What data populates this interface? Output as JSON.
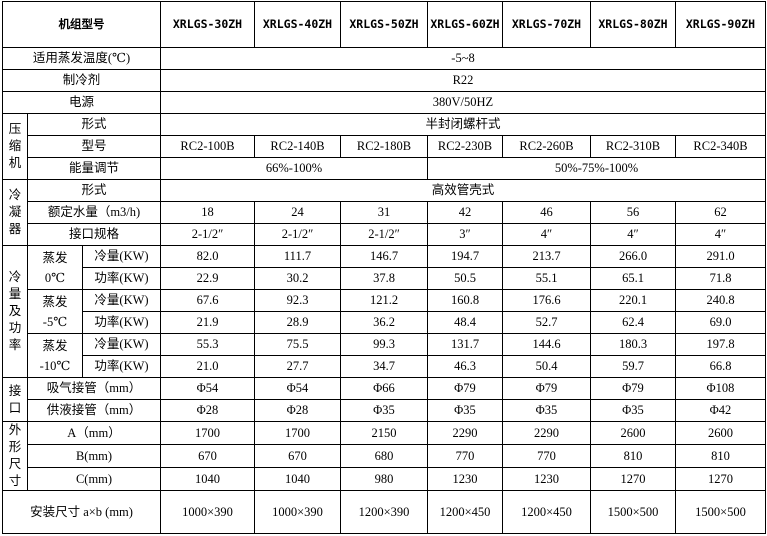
{
  "table": {
    "header": {
      "label": "机组型号",
      "models": [
        "XRLGS-30ZH",
        "XRLGS-40ZH",
        "XRLGS-50ZH",
        "XRLGS-60ZH",
        "XRLGS-70ZH",
        "XRLGS-80ZH",
        "XRLGS-90ZH"
      ]
    },
    "evap_temp": {
      "label": "适用蒸发温度(℃)",
      "value": "-5~8"
    },
    "refrigerant": {
      "label": "制冷剂",
      "value": "R22"
    },
    "power_supply": {
      "label": "电源",
      "value": "380V/50HZ"
    },
    "compressor": {
      "group": "压缩机",
      "type_label": "形式",
      "type": "半封闭螺杆式",
      "model_label": "型号",
      "models": [
        "RC2-100B",
        "RC2-140B",
        "RC2-180B",
        "RC2-230B",
        "RC2-260B",
        "RC2-310B",
        "RC2-340B"
      ],
      "capacity_label": "能量调节",
      "capacity": [
        "66%-100%",
        "50%-75%-100%"
      ]
    },
    "condenser": {
      "group": "冷凝器",
      "type_label": "形式",
      "type": "高效管壳式",
      "flow_label": "额定水量（m3/h)",
      "flow": [
        "18",
        "24",
        "31",
        "42",
        "46",
        "56",
        "62"
      ],
      "conn_label": "接口规格",
      "conn": [
        "2-1/2″",
        "2-1/2″",
        "2-1/2″",
        "3″",
        "4″",
        "4″",
        "4″"
      ]
    },
    "cooling": {
      "group": "冷量及功率",
      "conditions": [
        {
          "label_1": "蒸发",
          "label_2": "0℃",
          "capacity_label": "冷量(KW)",
          "capacity": [
            "82.0",
            "111.7",
            "146.7",
            "194.7",
            "213.7",
            "266.0",
            "291.0"
          ],
          "power_label": "功率(KW)",
          "power": [
            "22.9",
            "30.2",
            "37.8",
            "50.5",
            "55.1",
            "65.1",
            "71.8"
          ]
        },
        {
          "label_1": "蒸发",
          "label_2": "-5℃",
          "capacity_label": "冷量(KW)",
          "capacity": [
            "67.6",
            "92.3",
            "121.2",
            "160.8",
            "176.6",
            "220.1",
            "240.8"
          ],
          "power_label": "功率(KW)",
          "power": [
            "21.9",
            "28.9",
            "36.2",
            "48.4",
            "52.7",
            "62.4",
            "69.0"
          ]
        },
        {
          "label_1": "蒸发",
          "label_2": "-10℃",
          "capacity_label": "冷量(KW)",
          "capacity": [
            "55.3",
            "75.5",
            "99.3",
            "131.7",
            "144.6",
            "180.3",
            "197.8"
          ],
          "power_label": "功率(KW)",
          "power": [
            "21.0",
            "27.7",
            "34.7",
            "46.3",
            "50.4",
            "59.7",
            "66.8"
          ]
        }
      ]
    },
    "pipes": {
      "group": "接口",
      "suction_label": "吸气接管（mm）",
      "suction": [
        "Φ54",
        "Φ54",
        "Φ66",
        "Φ79",
        "Φ79",
        "Φ79",
        "Φ108"
      ],
      "liquid_label": "供液接管（mm）",
      "liquid": [
        "Φ28",
        "Φ28",
        "Φ35",
        "Φ35",
        "Φ35",
        "Φ35",
        "Φ42"
      ]
    },
    "dimensions": {
      "group": "外形尺寸",
      "rows": [
        {
          "label": "A（mm）",
          "values": [
            "1700",
            "1700",
            "2150",
            "2290",
            "2290",
            "2600",
            "2600"
          ]
        },
        {
          "label": "B(mm)",
          "values": [
            "670",
            "670",
            "680",
            "770",
            "770",
            "810",
            "810"
          ]
        },
        {
          "label": "C(mm)",
          "values": [
            "1040",
            "1040",
            "980",
            "1230",
            "1230",
            "1270",
            "1270"
          ]
        }
      ]
    },
    "install": {
      "label": "安装尺寸 a×b (mm)",
      "values": [
        "1000×390",
        "1000×390",
        "1200×390",
        "1200×450",
        "1200×450",
        "1500×500",
        "1500×500"
      ]
    }
  }
}
